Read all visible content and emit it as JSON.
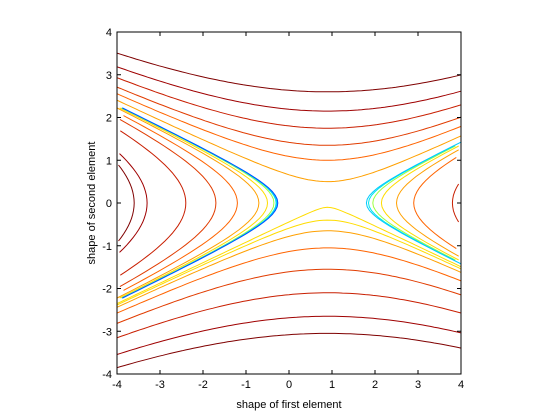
{
  "chart_data": {
    "type": "contour",
    "xlabel": "shape of first element",
    "ylabel": "shape of second element",
    "xlim": [
      -4,
      4
    ],
    "ylim": [
      -4,
      4
    ],
    "xticks": [
      -4,
      -3,
      -2,
      -1,
      0,
      1,
      2,
      3,
      4
    ],
    "yticks": [
      -4,
      -3,
      -2,
      -1,
      0,
      1,
      2,
      3,
      4
    ],
    "grid": false,
    "saddle": [
      0.9,
      0.0
    ],
    "colormap": [
      "#7f0000",
      "#c81e00",
      "#ff6400",
      "#ffc800",
      "#e8ff00",
      "#80ff50",
      "#00e8e8",
      "#00a0ff",
      "#0000a0"
    ],
    "levels": [
      {
        "color": "#7f0000",
        "horizontal_y": [
          2.6,
          -3.05
        ],
        "vertical_x": [
          -3.6,
          4.4
        ]
      },
      {
        "color": "#9f0000",
        "horizontal_y": [
          2.15,
          -2.65
        ],
        "vertical_x": [
          -3.3
        ]
      },
      {
        "color": "#c81e00",
        "horizontal_y": [
          1.75,
          -2.1
        ],
        "vertical_x": [
          -2.4,
          3.8
        ]
      },
      {
        "color": "#e13c00",
        "horizontal_y": [
          1.35,
          -1.55
        ],
        "vertical_x": [
          -1.7
        ]
      },
      {
        "color": "#ff6400",
        "horizontal_y": [
          1.0,
          -1.05
        ],
        "vertical_x": [
          -1.2,
          2.9
        ]
      },
      {
        "color": "#ffa000",
        "horizontal_y": [
          0.5,
          -0.65
        ],
        "vertical_x": [
          -0.7,
          2.5
        ]
      },
      {
        "color": "#ffdc00",
        "horizontal_y": [
          -0.1,
          -0.4
        ],
        "vertical_x": [
          -0.5,
          2.15
        ]
      },
      {
        "color": "#a0ff40",
        "vertical_x": [
          -0.35,
          1.95
        ]
      },
      {
        "color": "#00e8e8",
        "vertical_x": [
          -0.3,
          1.85
        ]
      }
    ]
  }
}
